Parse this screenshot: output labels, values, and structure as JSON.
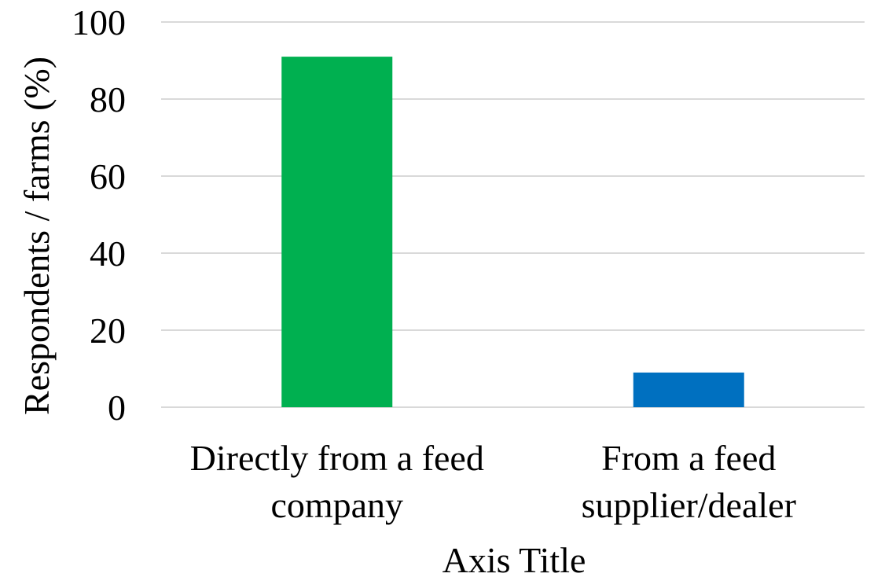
{
  "chart_data": {
    "type": "bar",
    "categories": [
      [
        "Directly from a feed",
        "company"
      ],
      [
        "From a feed",
        "supplier/dealer"
      ]
    ],
    "values": [
      91,
      9
    ],
    "colors": [
      "#00b050",
      "#0070c0"
    ],
    "ylabel": "Respondents / farms (%)",
    "xlabel": "Axis Title",
    "ylim": [
      0,
      100
    ],
    "yticks": [
      0,
      20,
      40,
      60,
      80,
      100
    ],
    "grid": true,
    "legend": "none"
  }
}
